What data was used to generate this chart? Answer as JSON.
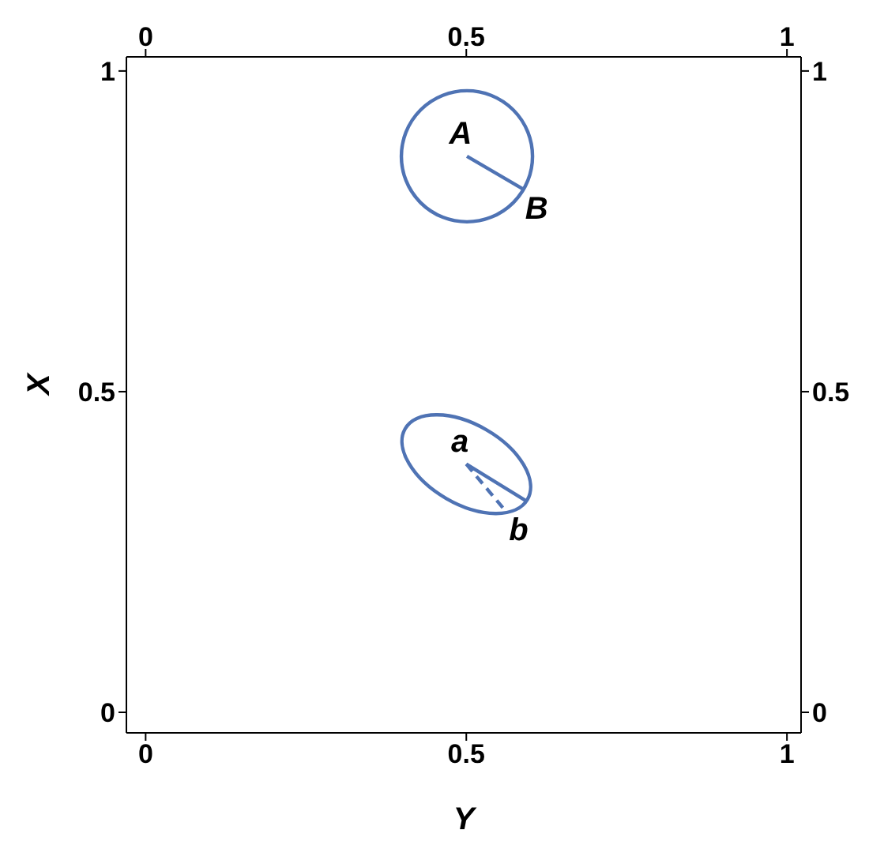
{
  "chart_data": {
    "type": "line",
    "xlabel": "Y",
    "ylabel": "X",
    "xlim": [
      -0.03,
      1.022
    ],
    "ylim": [
      -0.032,
      1.022
    ],
    "xticks": [
      0,
      0.5,
      1
    ],
    "yticks": [
      0,
      0.5,
      1
    ],
    "x2lim": [
      -0.03,
      1.022
    ],
    "x2ticks": [
      0,
      0.5,
      1
    ],
    "y2lim": [
      -0.032,
      1.022
    ],
    "y2ticks": [
      0,
      0.5,
      1
    ],
    "marker": "none",
    "line_style": "solid",
    "series": [
      {
        "color": "#4f73b4",
        "x": [
          0.501,
          0.59
        ],
        "values": [
          0.867,
          0.815
        ]
      },
      {
        "color": "#4f73b4",
        "x": [
          0.5,
          0.593
        ],
        "values": [
          0.387,
          0.33
        ]
      },
      {
        "color": "#4f73b4",
        "line_style": "dashed",
        "x": [
          0.5,
          0.562
        ],
        "values": [
          0.387,
          0.313
        ]
      }
    ],
    "annotations": [
      {
        "text": "A",
        "x": 0.501,
        "y": 0.867
      },
      {
        "text": "B",
        "x": 0.59,
        "y": 0.815
      },
      {
        "text": "a",
        "x": 0.5,
        "y": 0.387
      },
      {
        "text": "b",
        "x": 0.562,
        "y": 0.313
      }
    ]
  }
}
